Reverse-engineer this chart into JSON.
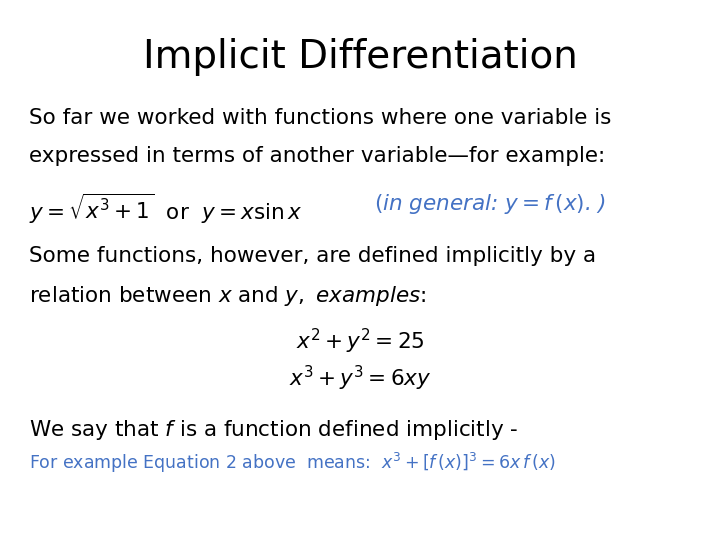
{
  "title": "Implicit Differentiation",
  "title_fontsize": 28,
  "title_color": "#000000",
  "background_color": "#ffffff",
  "text_color": "#000000",
  "blue_color": "#4472c4",
  "body_fontsize": 15.5,
  "small_fontsize": 12.5
}
